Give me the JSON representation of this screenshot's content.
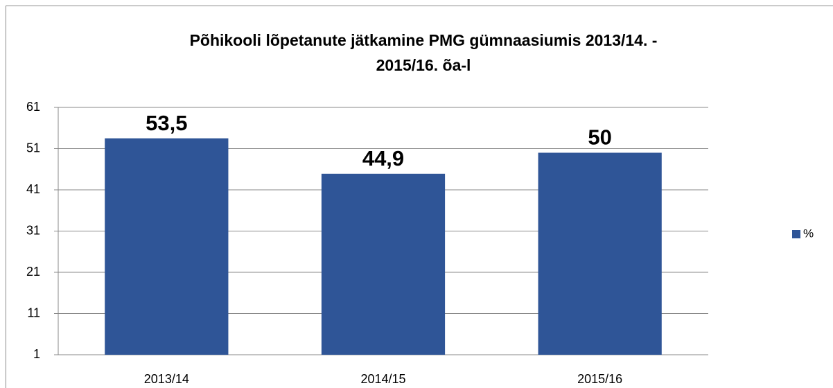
{
  "chart_data": {
    "type": "bar",
    "title": "Põhikooli lõpetanute jätkamine PMG gümnaasiumis 2013/14. - 2015/16. õa-l",
    "categories": [
      "2013/14",
      "2014/15",
      "2015/16"
    ],
    "series": [
      {
        "name": "%",
        "color": "#2f5597",
        "values": [
          53.5,
          44.9,
          50
        ],
        "value_labels": [
          "53,5",
          "44,9",
          "50"
        ]
      }
    ],
    "ylim": [
      1,
      61
    ],
    "yticks": [
      1,
      11,
      21,
      31,
      41,
      51,
      61
    ],
    "grid": true,
    "legend": "right"
  }
}
